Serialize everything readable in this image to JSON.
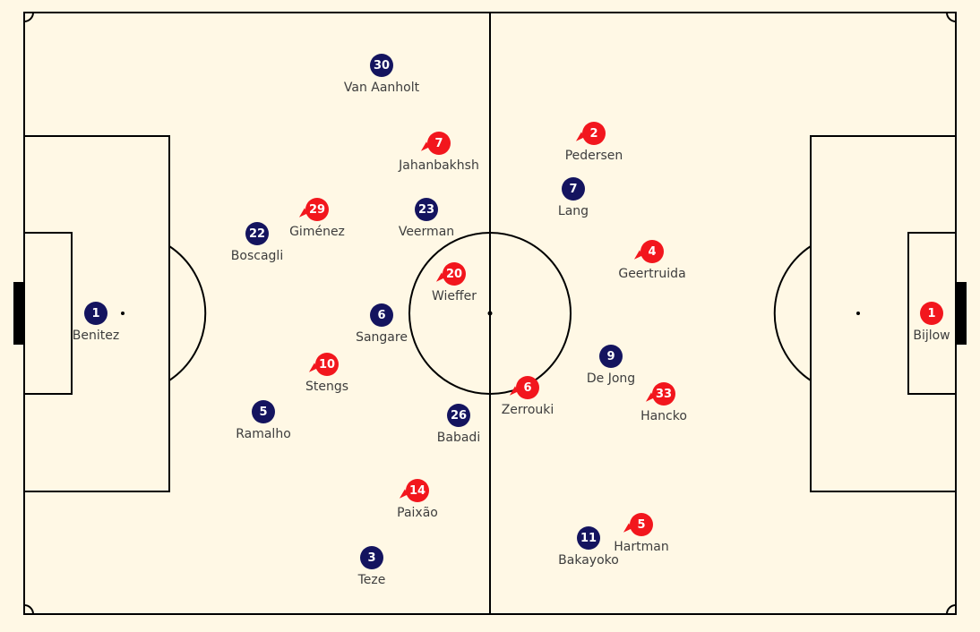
{
  "colors": {
    "background": "#fff8e5",
    "lines": "#000000",
    "home_team": "#14145f",
    "away_team": "#f2161d",
    "label_text": "#3d3d3d"
  },
  "home_team": {
    "players": [
      {
        "number": "1",
        "name": "Benitez"
      },
      {
        "number": "30",
        "name": "Van Aanholt"
      },
      {
        "number": "23",
        "name": "Veerman"
      },
      {
        "number": "22",
        "name": "Boscagli"
      },
      {
        "number": "6",
        "name": "Sangare"
      },
      {
        "number": "5",
        "name": "Ramalho"
      },
      {
        "number": "26",
        "name": "Babadi"
      },
      {
        "number": "3",
        "name": "Teze"
      },
      {
        "number": "7",
        "name": "Lang"
      },
      {
        "number": "9",
        "name": "De Jong"
      },
      {
        "number": "11",
        "name": "Bakayoko"
      }
    ]
  },
  "away_team": {
    "players": [
      {
        "number": "1",
        "name": "Bijlow"
      },
      {
        "number": "7",
        "name": "Jahanbakhsh"
      },
      {
        "number": "29",
        "name": "Giménez"
      },
      {
        "number": "20",
        "name": "Wieffer"
      },
      {
        "number": "10",
        "name": "Stengs"
      },
      {
        "number": "14",
        "name": "Paixão"
      },
      {
        "number": "2",
        "name": "Pedersen"
      },
      {
        "number": "4",
        "name": "Geertruida"
      },
      {
        "number": "6",
        "name": "Zerrouki"
      },
      {
        "number": "33",
        "name": "Hancko"
      },
      {
        "number": "5",
        "name": "Hartman"
      }
    ]
  }
}
